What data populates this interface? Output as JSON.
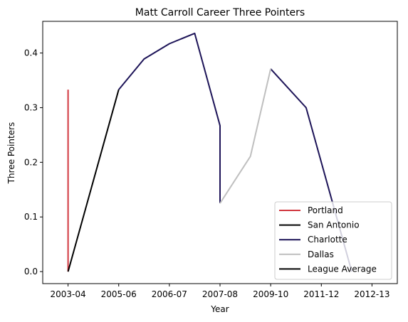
{
  "chart_data": {
    "type": "line",
    "title": "Matt Carroll  Career Three Pointers",
    "xlabel": "Year",
    "ylabel": "Three Pointers",
    "x_ticks": [
      {
        "x": 0,
        "label": "2003-04"
      },
      {
        "x": 1,
        "label": "2005-06"
      },
      {
        "x": 2,
        "label": "2006-07"
      },
      {
        "x": 3,
        "label": "2007-08"
      },
      {
        "x": 4,
        "label": "2009-10"
      },
      {
        "x": 5,
        "label": "2011-12"
      },
      {
        "x": 6,
        "label": "2012-13"
      }
    ],
    "y_ticks": [
      {
        "y": 0.0,
        "label": "0.0"
      },
      {
        "y": 0.1,
        "label": "0.1"
      },
      {
        "y": 0.2,
        "label": "0.2"
      },
      {
        "y": 0.3,
        "label": "0.3"
      },
      {
        "y": 0.4,
        "label": "0.4"
      }
    ],
    "xlim": [
      -0.5,
      6.5
    ],
    "ylim": [
      -0.022,
      0.458
    ],
    "grid": false,
    "legend_position": "lower-right",
    "series": [
      {
        "name": "Portland",
        "color": "#d1363e",
        "x": [
          0,
          0
        ],
        "y": [
          0.333,
          0.0
        ]
      },
      {
        "name": "San Antonio",
        "color": "#000000",
        "x": [
          0,
          1
        ],
        "y": [
          0.0,
          0.333
        ]
      },
      {
        "name": "Charlotte",
        "color": "#1d1458",
        "x": [
          1,
          1.5,
          2,
          2.5,
          3.0,
          3.0,
          3.0
        ],
        "y": [
          0.333,
          0.389,
          0.417,
          0.436,
          0.267,
          0.125,
          0.125
        ]
      },
      {
        "name": "Charlotte",
        "color": "#1d1458",
        "x": [
          4.0,
          4.7,
          5.6
        ],
        "y": [
          0.371,
          0.3,
          0.0
        ]
      },
      {
        "name": "Dallas",
        "color": "#bfbfbf",
        "x": [
          3.0,
          3.6,
          4.0
        ],
        "y": [
          0.125,
          0.211,
          0.371
        ]
      },
      {
        "name": "League Average",
        "color": "#000000",
        "x": [],
        "y": []
      }
    ]
  },
  "legend": {
    "items": [
      {
        "label": "Portland",
        "color": "#d1363e"
      },
      {
        "label": "San Antonio",
        "color": "#000000"
      },
      {
        "label": "Charlotte",
        "color": "#1d1458"
      },
      {
        "label": "Dallas",
        "color": "#bfbfbf"
      },
      {
        "label": "League Average",
        "color": "#000000"
      }
    ]
  }
}
